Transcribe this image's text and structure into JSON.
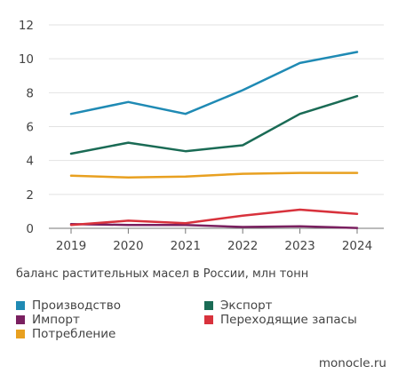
{
  "chart_data": {
    "type": "line",
    "x": [
      "2019",
      "2020",
      "2021",
      "2022",
      "2023",
      "2024"
    ],
    "ylim": [
      0,
      12
    ],
    "yticks": [
      "0",
      "2",
      "4",
      "6",
      "8",
      "10",
      "12"
    ],
    "grid": true,
    "series": [
      {
        "name": "Производство",
        "color": "#1f8ab4",
        "values": [
          6.75,
          7.45,
          6.75,
          8.15,
          9.75,
          10.4
        ]
      },
      {
        "name": "Экспорт",
        "color": "#1a6b55",
        "values": [
          4.4,
          5.05,
          4.55,
          4.9,
          6.75,
          7.8
        ]
      },
      {
        "name": "Импорт",
        "color": "#7a2060",
        "values": [
          0.25,
          0.2,
          0.2,
          0.08,
          0.12,
          0.02
        ]
      },
      {
        "name": "Переходящие запасы",
        "color": "#d8323c",
        "values": [
          0.2,
          0.45,
          0.3,
          0.75,
          1.1,
          0.85
        ]
      },
      {
        "name": "Потребление",
        "color": "#e8a020",
        "values": [
          3.1,
          3.0,
          3.05,
          3.22,
          3.27,
          3.27
        ]
      }
    ],
    "caption": "баланс растительных масел в России, млн тонн",
    "legend_placement": "bottom"
  },
  "legend": {
    "items": [
      {
        "label": "Производство",
        "color": "#1f8ab4"
      },
      {
        "label": "Экспорт",
        "color": "#1a6b55"
      },
      {
        "label": "Импорт",
        "color": "#7a2060"
      },
      {
        "label": "Переходящие запасы",
        "color": "#d8323c"
      },
      {
        "label": "Потребление",
        "color": "#e8a020"
      }
    ]
  },
  "source": "monocle.ru"
}
